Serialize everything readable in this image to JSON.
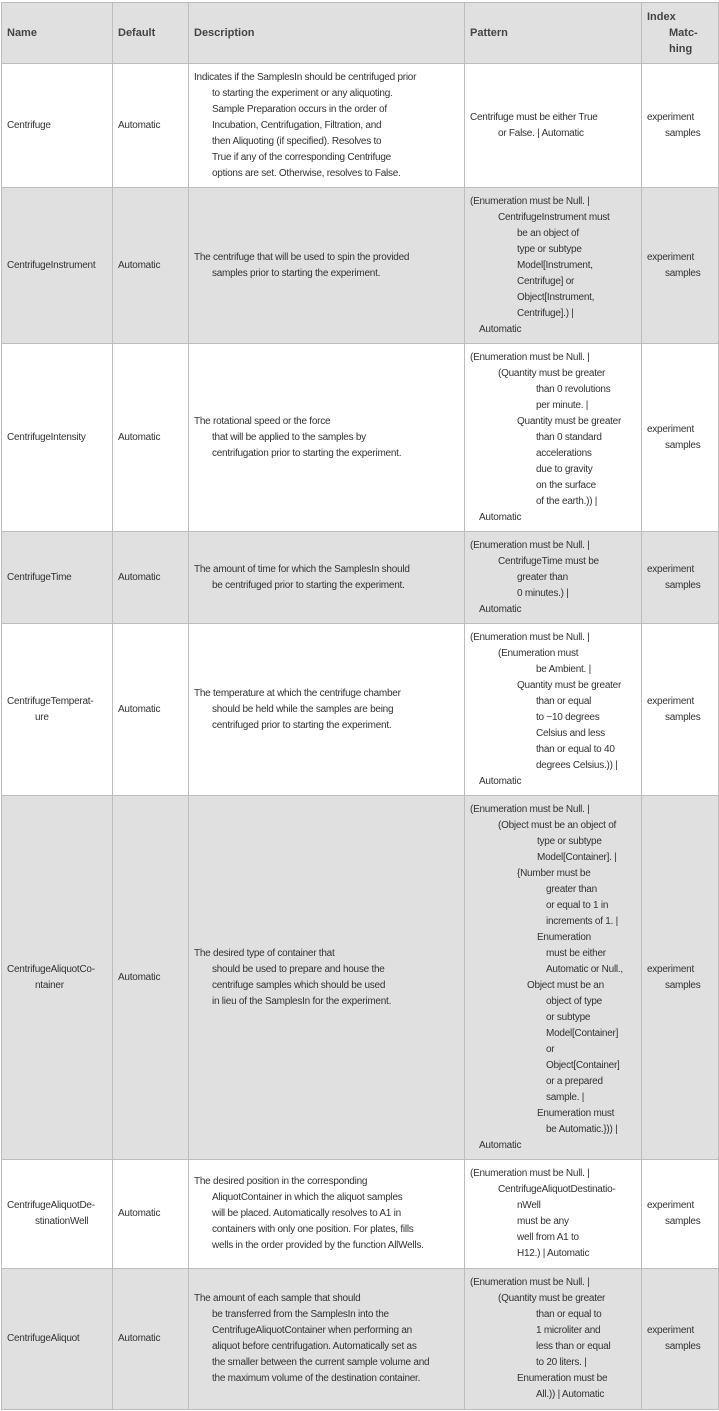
{
  "header": {
    "name": "Name",
    "default": "Default",
    "description": "Description",
    "pattern": "Pattern",
    "index_matching": [
      "Index",
      "Matc-",
      "hing"
    ]
  },
  "rows": [
    {
      "name": [
        "Centrifuge"
      ],
      "default": "Automatic",
      "description": [
        "Indicates if the SamplesIn should be centrifuged prior",
        "to starting the experiment or any aliquoting.",
        "Sample Preparation occurs in the order of",
        "Incubation, Centrifugation, Filtration, and",
        "then Aliquoting (if specified).  Resolves to",
        "True if any of the corresponding Centrifuge",
        "options are set. Otherwise, resolves to False."
      ],
      "pattern": [
        "Centrifuge must be either True",
        "or False. | Automatic"
      ],
      "index_matching": [
        "experiment",
        "samples"
      ]
    },
    {
      "name": [
        "CentrifugeInstrument"
      ],
      "default": "Automatic",
      "description": [
        "The centrifuge that will be used to spin the provided",
        "samples prior to starting the experiment."
      ],
      "pattern": [
        "(Enumeration must be Null. |",
        "CentrifugeInstrument must",
        "be an object of",
        "type or subtype",
        "Model[Instrument,",
        "Centrifuge] or",
        "Object[Instrument,",
        "Centrifuge].) |",
        "Automatic"
      ],
      "index_matching": [
        "experiment",
        "samples"
      ]
    },
    {
      "name": [
        "CentrifugeIntensity"
      ],
      "default": "Automatic",
      "description": [
        "The rotational speed or the force",
        "that will be applied to the samples by",
        "centrifugation prior to starting the experiment."
      ],
      "pattern": [
        "(Enumeration must be Null. |",
        "(Quantity must be greater",
        "than 0 revolutions",
        "per minute. |",
        "Quantity must be greater",
        "than 0 standard",
        "accelerations",
        "due to gravity",
        "on the surface",
        "of the earth.)) |",
        "Automatic"
      ],
      "index_matching": [
        "experiment",
        "samples"
      ]
    },
    {
      "name": [
        "CentrifugeTime"
      ],
      "default": "Automatic",
      "description": [
        "The amount of time for which the SamplesIn should",
        "be centrifuged prior to starting the experiment."
      ],
      "pattern": [
        "(Enumeration must be Null. |",
        "CentrifugeTime must be",
        "greater than",
        "0 minutes.) |",
        "Automatic"
      ],
      "index_matching": [
        "experiment",
        "samples"
      ]
    },
    {
      "name": [
        "CentrifugeTemperat-",
        "ure"
      ],
      "default": "Automatic",
      "description": [
        "The temperature at which the centrifuge chamber",
        "should be held while the samples are being",
        "centrifuged prior to starting the experiment."
      ],
      "pattern": [
        "(Enumeration must be Null. |",
        "(Enumeration must",
        "be Ambient. |",
        "Quantity must be greater",
        "than or equal",
        "to −10 degrees",
        "Celsius and less",
        "than or equal to 40",
        "degrees Celsius.)) |",
        "Automatic"
      ],
      "index_matching": [
        "experiment",
        "samples"
      ]
    },
    {
      "name": [
        "CentrifugeAliquotCo-",
        "ntainer"
      ],
      "default": "Automatic",
      "description": [
        "The desired type of container that",
        "should be used to prepare and house the",
        "centrifuge samples which should be used",
        "in lieu of the SamplesIn for the experiment."
      ],
      "pattern": [
        "(Enumeration must be Null. |",
        "(Object must be an object of",
        "type or subtype",
        "Model[Container]. |",
        "{Number must be",
        "greater than",
        "or equal to 1 in",
        "increments of 1. |",
        "Enumeration",
        "must be either",
        "Automatic or Null.,",
        "Object must be an",
        "object of type",
        "or subtype",
        "Model[Container]",
        "or",
        "Object[Container]",
        "or a prepared",
        "sample. |",
        "Enumeration must",
        "be Automatic.})) |",
        "Automatic"
      ],
      "index_matching": [
        "experiment",
        "samples"
      ]
    },
    {
      "name": [
        "CentrifugeAliquotDe-",
        "stinationWell"
      ],
      "default": "Automatic",
      "description": [
        "The desired position in the corresponding",
        "AliquotContainer in which the aliquot samples",
        "will be placed.  Automatically resolves to A1 in",
        "containers with only one position.  For plates, fills",
        "wells in the order provided by the function AllWells."
      ],
      "pattern": [
        "(Enumeration must be Null. |",
        "CentrifugeAliquotDestinatio-",
        "nWell",
        "must be any",
        "well from A1 to",
        "H12.) | Automatic"
      ],
      "index_matching": [
        "experiment",
        "samples"
      ]
    },
    {
      "name": [
        "CentrifugeAliquot"
      ],
      "default": "Automatic",
      "description": [
        "The amount of each sample that should",
        "be transferred from the SamplesIn into the",
        "CentrifugeAliquotContainer when performing an",
        "aliquot before centrifugation.  Automatically set as",
        "the smaller between the current sample volume and",
        "the maximum volume of the destination container."
      ],
      "pattern": [
        "(Enumeration must be Null. |",
        "(Quantity must be greater",
        "than or equal to",
        "1 microliter and",
        "less than or equal",
        "to 20 liters. |",
        "Enumeration must be",
        "All.)) | Automatic"
      ],
      "index_matching": [
        "experiment",
        "samples"
      ]
    }
  ]
}
